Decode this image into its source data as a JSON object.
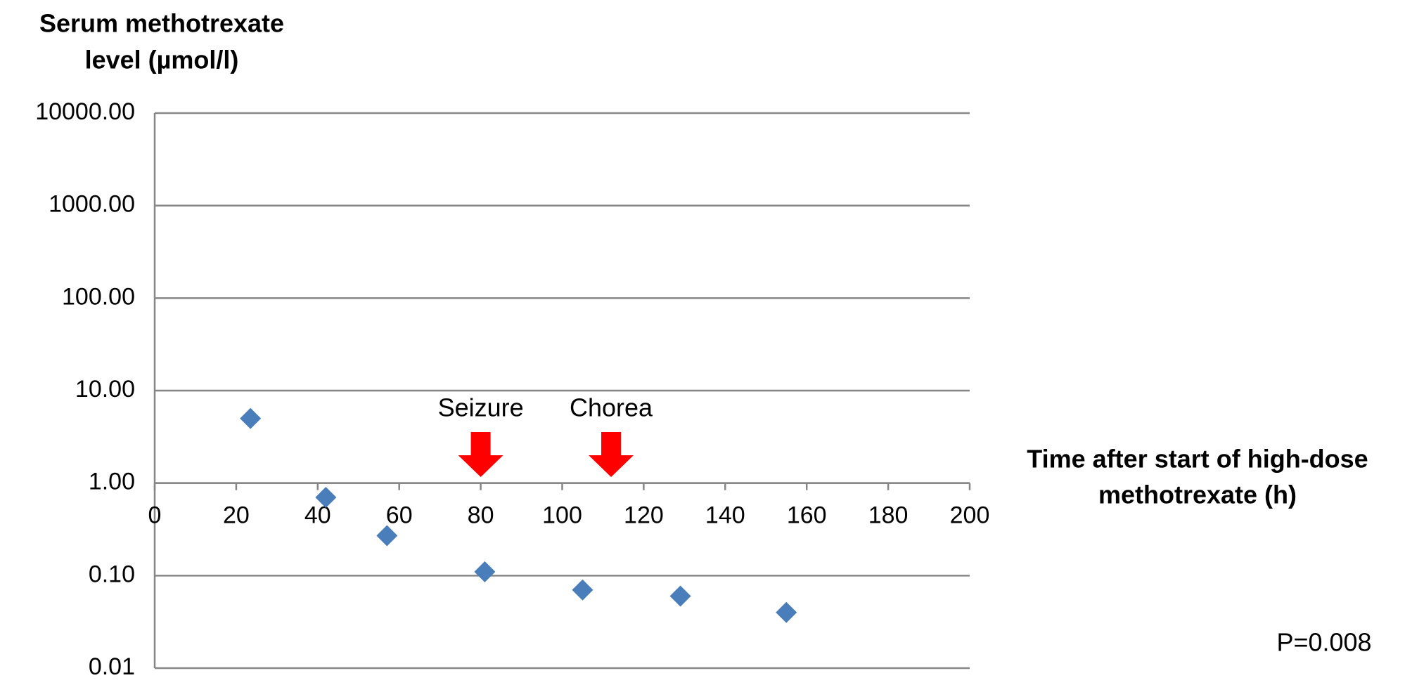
{
  "chart_data": {
    "type": "scatter",
    "y_label": [
      "Serum methotrexate",
      "level (µmol/l)"
    ],
    "x_label": [
      "Time after start of high-dose",
      "methotrexate (h)"
    ],
    "x": [
      23.5,
      42,
      57,
      81,
      105,
      129,
      155
    ],
    "values": [
      5,
      0.7,
      0.27,
      0.11,
      0.07,
      0.06,
      0.04
    ],
    "color": "#4a7ebb",
    "xlim": [
      0,
      200
    ],
    "xticks": [
      0,
      20,
      40,
      60,
      80,
      100,
      120,
      140,
      160,
      180,
      200
    ],
    "ylim": [
      0.01,
      10000
    ],
    "yticks": [
      0.01,
      {
        "value": 0.1,
        "label": "0.10"
      },
      {
        "value": 1,
        "label": "1.00"
      },
      {
        "value": 10,
        "label": "10.00"
      },
      {
        "value": 100,
        "label": "100.00"
      },
      {
        "value": 1000,
        "label": "1000.00"
      },
      {
        "value": 10000,
        "label": "10000.00"
      }
    ],
    "y_log": true,
    "grid": true,
    "x_axis_at": 1,
    "annotations": [
      {
        "text": "Seizure",
        "x": 80,
        "color": "#ff0000"
      },
      {
        "text": "Chorea",
        "x": 112,
        "color": "#ff0000"
      }
    ],
    "note": "P=0.008"
  }
}
